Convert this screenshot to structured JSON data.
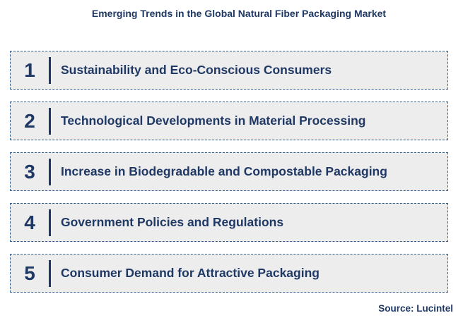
{
  "title": "Emerging Trends in the Global Natural Fiber Packaging Market",
  "items": [
    {
      "number": "1",
      "label": "Sustainability and Eco-Conscious Consumers"
    },
    {
      "number": "2",
      "label": "Technological Developments in Material Processing"
    },
    {
      "number": "3",
      "label": "Increase in Biodegradable and Compostable Packaging"
    },
    {
      "number": "4",
      "label": "Government Policies and Regulations"
    },
    {
      "number": "5",
      "label": "Consumer Demand for Attractive Packaging"
    }
  ],
  "source": "Source: Lucintel",
  "colors": {
    "text": "#1f3864",
    "box_fill": "#ededed",
    "box_border": "#2e5c8a"
  }
}
